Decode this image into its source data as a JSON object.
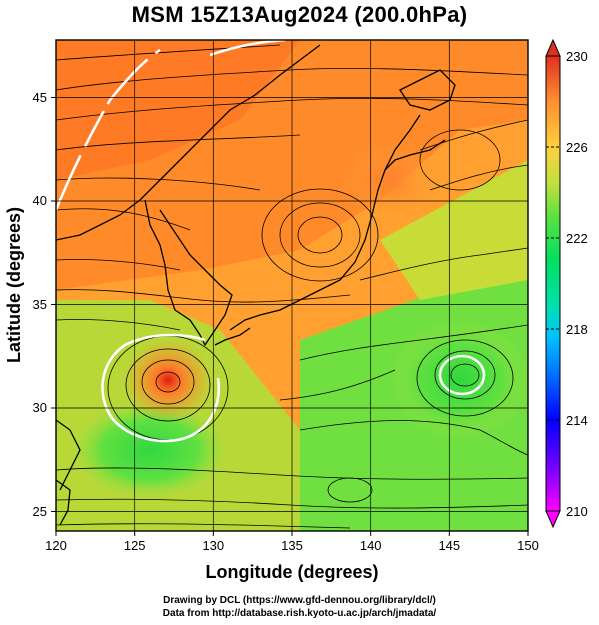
{
  "title": "MSM 15Z13Aug2024 (200.0hPa)",
  "x_axis": {
    "label": "Longitude (degrees)",
    "ticks": [
      120,
      125,
      130,
      135,
      140,
      145,
      150
    ]
  },
  "y_axis": {
    "label": "Latitude  (degrees)",
    "ticks": [
      25,
      30,
      35,
      40,
      45
    ]
  },
  "colorbar": {
    "ticks": [
      "230",
      "226",
      "222",
      "218",
      "214",
      "210"
    ],
    "colors": [
      "#ff00ff",
      "#8a00ff",
      "#0000ff",
      "#0060ff",
      "#00b0ff",
      "#00e0c0",
      "#00e070",
      "#40e040",
      "#90e040",
      "#d0e040",
      "#ffc040",
      "#ff8030",
      "#e03020"
    ]
  },
  "footer": {
    "line1": "Drawing by DCL (https://www.gfd-dennou.org/library/dcl/)",
    "line2": "Data from http://database.rish.kyoto-u.ac.jp/arch/jmadata/"
  },
  "map_colors": {
    "warm": "#ff7a2a",
    "orange": "#ff9a30",
    "yellow": "#d8d830",
    "green": "#5ae040",
    "land_outline": "#000000",
    "streamline": "#000000",
    "highlight_contour": "#ffffff"
  }
}
